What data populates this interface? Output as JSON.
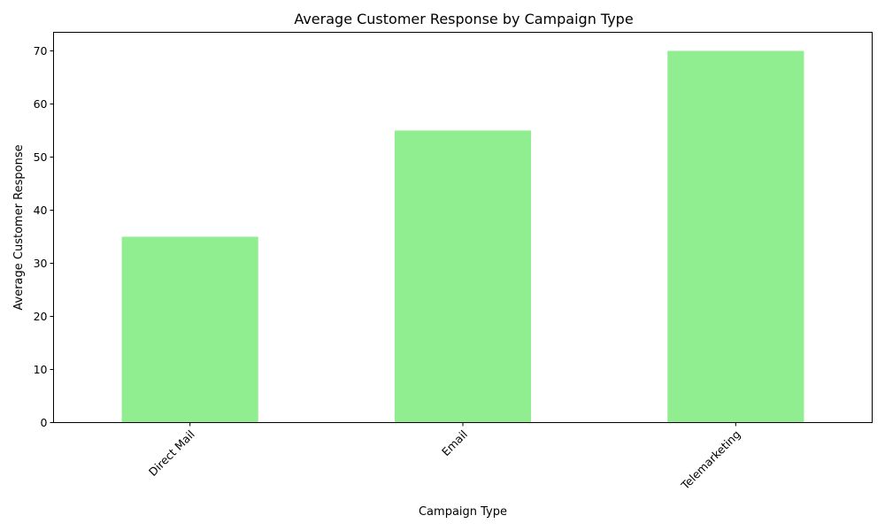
{
  "chart_data": {
    "type": "bar",
    "title": "Average Customer Response by Campaign Type",
    "xlabel": "Campaign Type",
    "ylabel": "Average Customer Response",
    "categories": [
      "Direct Mail",
      "Email",
      "Telemarketing"
    ],
    "values": [
      35,
      55,
      70
    ],
    "ylim": [
      0,
      73.5
    ],
    "yticks": [
      0,
      10,
      20,
      30,
      40,
      50,
      60,
      70
    ],
    "grid": false,
    "legend": "none",
    "bar_color": "#90ee90",
    "xtick_rotation_deg": 45
  }
}
